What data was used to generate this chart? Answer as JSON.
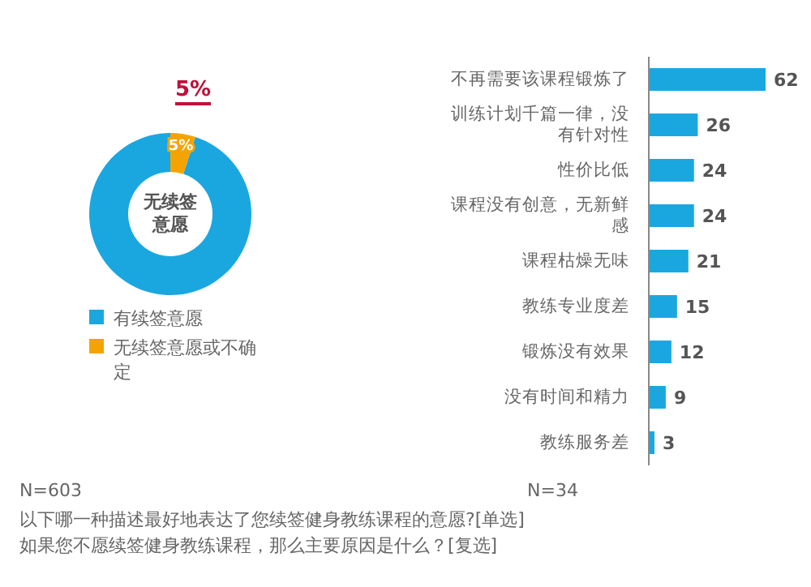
{
  "chart_data": [
    {
      "type": "donut",
      "categories": [
        "有续签意愿",
        "无续签意愿或不确定"
      ],
      "values": [
        95,
        5
      ],
      "colors": [
        "#1aa7e0",
        "#f5a300"
      ],
      "value_labels": [
        null,
        "5%"
      ],
      "legend": "bottom",
      "annotations": [
        "无续签意愿",
        "5%",
        "N=603",
        "以下哪一种描述最好地表达了您续签健身教练课程的意愿?[单选]"
      ]
    },
    {
      "type": "bar",
      "orientation": "horizontal",
      "categories": [
        "不再需要该课程锻炼了",
        "训练计划千篇一律，没有针对性",
        "性价比低",
        "课程没有创意，无新鲜感",
        "课程枯燥无味",
        "教练专业度差",
        "锻炼没有效果",
        "没有时间和精力",
        "教练服务差"
      ],
      "values": [
        62,
        26,
        24,
        24,
        21,
        15,
        12,
        9,
        3
      ],
      "color": "#1aa7e0",
      "data_labels": true,
      "annotations": [
        "N=34",
        "如果您不愿续签健身教练课程，那么主要原因是什么？[复选]"
      ]
    }
  ]
}
